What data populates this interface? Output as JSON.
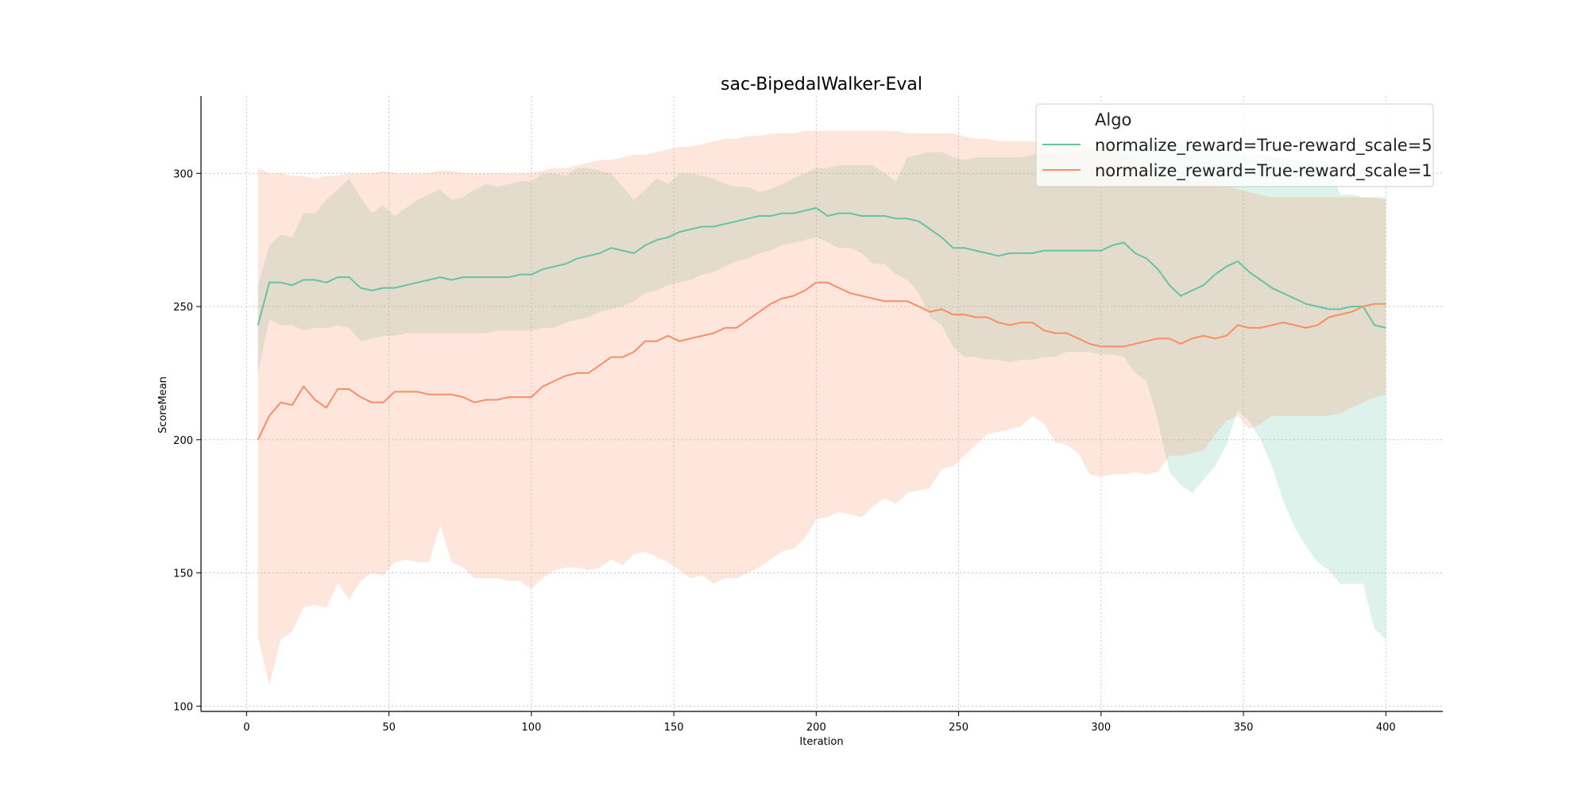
{
  "chart_data": {
    "type": "line",
    "title": "sac-BipedalWalker-Eval",
    "xlabel": "Iteration",
    "ylabel": "ScoreMean",
    "xlim": [
      -16,
      420
    ],
    "ylim": [
      98,
      329
    ],
    "xticks": [
      0,
      50,
      100,
      150,
      200,
      250,
      300,
      350,
      400
    ],
    "yticks": [
      100,
      150,
      200,
      250,
      300
    ],
    "grid": true,
    "legend": {
      "title": "Algo",
      "placement": "top-right"
    },
    "x": [
      4,
      8,
      12,
      16,
      20,
      24,
      28,
      32,
      36,
      40,
      44,
      48,
      52,
      56,
      60,
      64,
      68,
      72,
      76,
      80,
      84,
      88,
      92,
      96,
      100,
      104,
      108,
      112,
      116,
      120,
      124,
      128,
      132,
      136,
      140,
      144,
      148,
      152,
      156,
      160,
      164,
      168,
      172,
      176,
      180,
      184,
      188,
      192,
      196,
      200,
      204,
      208,
      212,
      216,
      220,
      224,
      228,
      232,
      236,
      240,
      244,
      248,
      252,
      256,
      260,
      264,
      268,
      272,
      276,
      280,
      284,
      288,
      292,
      296,
      300,
      304,
      308,
      312,
      316,
      320,
      324,
      328,
      332,
      336,
      340,
      344,
      348,
      352,
      356,
      360,
      364,
      368,
      372,
      376,
      380,
      384,
      388,
      392,
      396,
      400
    ],
    "series": [
      {
        "name": "normalize_reward=True-reward_scale=5",
        "color": "#66c2a5",
        "values": [
          243,
          259,
          259,
          258,
          260,
          260,
          259,
          261,
          261,
          257,
          256,
          257,
          257,
          258,
          259,
          260,
          261,
          260,
          261,
          261,
          261,
          261,
          261,
          262,
          262,
          264,
          265,
          266,
          268,
          269,
          270,
          272,
          271,
          270,
          273,
          275,
          276,
          278,
          279,
          280,
          280,
          281,
          282,
          283,
          284,
          284,
          285,
          285,
          286,
          287,
          284,
          285,
          285,
          284,
          284,
          284,
          283,
          283,
          282,
          279,
          276,
          272,
          272,
          271,
          270,
          269,
          270,
          270,
          270,
          271,
          271,
          271,
          271,
          271,
          271,
          273,
          274,
          270,
          268,
          264,
          258,
          254,
          256,
          258,
          262,
          265,
          267,
          263,
          260,
          257,
          255,
          253,
          251,
          250,
          249,
          249,
          250,
          250,
          243,
          242
        ],
        "upper": [
          258,
          273,
          277,
          276,
          285,
          285,
          290,
          294,
          298,
          291,
          285,
          288,
          284,
          287,
          290,
          292,
          294,
          290,
          291,
          294,
          296,
          295,
          296,
          297,
          297,
          300,
          300,
          299,
          302,
          302,
          301,
          300,
          295,
          290,
          294,
          298,
          296,
          300,
          300,
          299,
          298,
          296,
          295,
          295,
          293,
          294,
          296,
          298,
          300,
          302,
          302,
          303,
          303,
          303,
          303,
          300,
          297,
          306,
          307,
          308,
          308,
          306,
          305,
          306,
          306,
          306,
          306,
          306,
          307,
          307,
          307,
          308,
          308,
          309,
          310,
          310,
          311,
          311,
          311,
          311,
          311,
          311,
          310,
          309,
          309,
          308,
          308,
          307,
          307,
          306,
          306,
          305,
          305,
          305,
          304,
          292,
          292,
          291,
          291,
          290
        ],
        "lower": [
          225,
          245,
          243,
          243,
          241,
          242,
          242,
          243,
          242,
          237,
          238,
          239,
          239,
          240,
          240,
          240,
          240,
          240,
          240,
          240,
          240,
          241,
          241,
          241,
          241,
          242,
          242,
          244,
          245,
          246,
          248,
          249,
          250,
          252,
          255,
          256,
          258,
          259,
          260,
          262,
          263,
          265,
          267,
          268,
          270,
          271,
          273,
          274,
          275,
          276,
          274,
          272,
          272,
          270,
          266,
          266,
          262,
          260,
          255,
          246,
          243,
          235,
          231,
          231,
          230,
          230,
          229,
          230,
          230,
          231,
          231,
          233,
          233,
          233,
          232,
          232,
          231,
          225,
          222,
          207,
          188,
          183,
          180,
          185,
          190,
          198,
          211,
          207,
          200,
          190,
          177,
          167,
          160,
          154,
          151,
          146,
          146,
          146,
          129,
          125
        ]
      },
      {
        "name": "normalize_reward=True-reward_scale=1",
        "color": "#fc8d62",
        "values": [
          200,
          209,
          214,
          213,
          220,
          215,
          212,
          219,
          219,
          216,
          214,
          214,
          218,
          218,
          218,
          217,
          217,
          217,
          216,
          214,
          215,
          215,
          216,
          216,
          216,
          220,
          222,
          224,
          225,
          225,
          228,
          231,
          231,
          233,
          237,
          237,
          239,
          237,
          238,
          239,
          240,
          242,
          242,
          245,
          248,
          251,
          253,
          254,
          256,
          259,
          259,
          257,
          255,
          254,
          253,
          252,
          252,
          252,
          250,
          248,
          249,
          247,
          247,
          246,
          246,
          244,
          243,
          244,
          244,
          241,
          240,
          240,
          238,
          236,
          235,
          235,
          235,
          236,
          237,
          238,
          238,
          236,
          238,
          239,
          238,
          239,
          243,
          242,
          242,
          243,
          244,
          243,
          242,
          243,
          246,
          247,
          248,
          250,
          251,
          251
        ],
        "upper": [
          302,
          300,
          300,
          299,
          299,
          298,
          299,
          299,
          300,
          300,
          300,
          301,
          300,
          300,
          300,
          300,
          301,
          301,
          300,
          300,
          300,
          300,
          300,
          300,
          300,
          301,
          302,
          302,
          303,
          304,
          305,
          305,
          306,
          307,
          307,
          308,
          309,
          310,
          310,
          311,
          312,
          313,
          313,
          314,
          314,
          315,
          315,
          315,
          316,
          316,
          316,
          316,
          316,
          316,
          316,
          316,
          316,
          315,
          315,
          315,
          315,
          315,
          314,
          313,
          313,
          312,
          312,
          312,
          312,
          311,
          311,
          311,
          310,
          310,
          309,
          308,
          307,
          305,
          302,
          300,
          299,
          298,
          297,
          297,
          296,
          295,
          294,
          293,
          292,
          291,
          291,
          291,
          291,
          291,
          291,
          291,
          291,
          291,
          291,
          291
        ],
        "lower": [
          126,
          108,
          125,
          128,
          137,
          138,
          137,
          146,
          140,
          147,
          150,
          149,
          154,
          155,
          154,
          154,
          168,
          154,
          152,
          148,
          148,
          148,
          147,
          147,
          144,
          148,
          151,
          152,
          152,
          151,
          152,
          155,
          153,
          157,
          158,
          156,
          154,
          151,
          148,
          149,
          146,
          148,
          148,
          150,
          152,
          155,
          158,
          159,
          163,
          170,
          171,
          173,
          172,
          171,
          175,
          178,
          176,
          180,
          181,
          182,
          189,
          190,
          194,
          198,
          202,
          203,
          204,
          205,
          209,
          206,
          199,
          198,
          195,
          187,
          186,
          187,
          187,
          188,
          187,
          188,
          194,
          194,
          195,
          196,
          202,
          207,
          209,
          204,
          206,
          209,
          209,
          209,
          209,
          209,
          209,
          210,
          212,
          214,
          216,
          217
        ]
      }
    ]
  }
}
